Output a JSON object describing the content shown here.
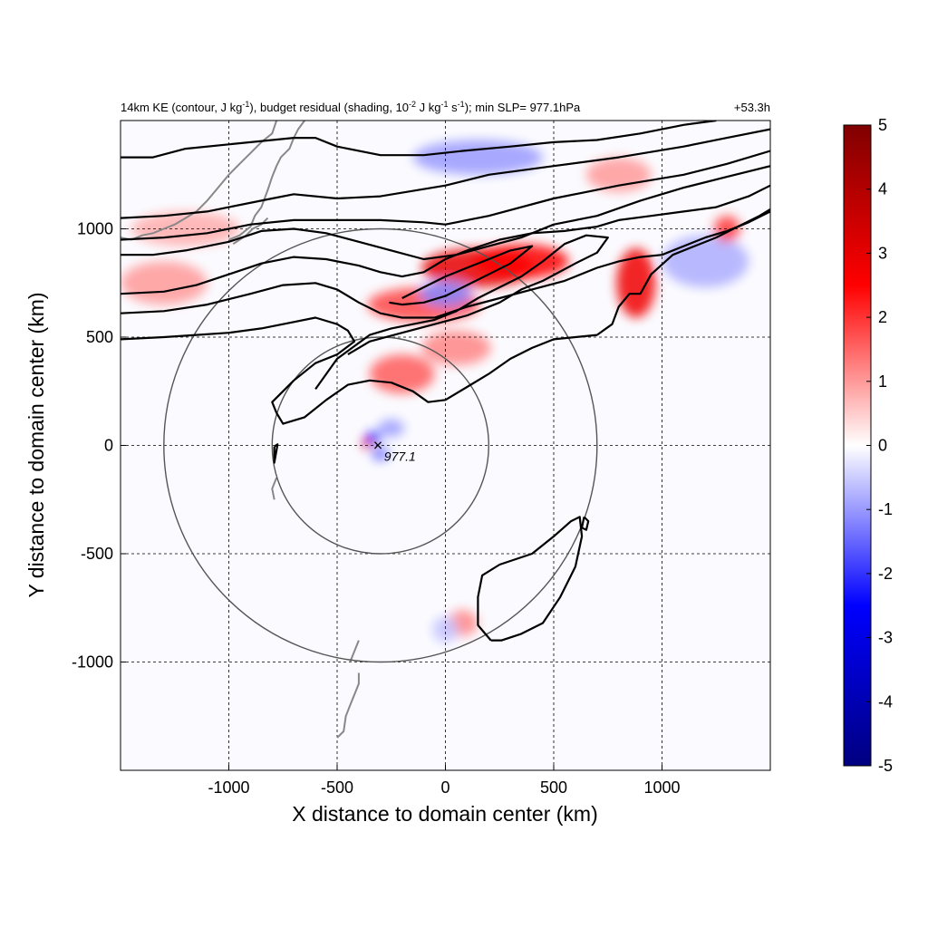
{
  "chart_data": {
    "type": "heatmap",
    "title": {
      "left_prefix": "14km KE (contour, J kg",
      "left_sup1": "-1",
      "left_mid1": "), budget residual (shading, 10",
      "left_sup2": "-2",
      "left_mid2": " J kg",
      "left_sup3": "-1",
      "left_mid3": " s",
      "left_sup4": "-1",
      "left_suffix": "); min SLP= 977.1hPa",
      "right": "+53.3h"
    },
    "xlabel": "X distance to domain center (km)",
    "ylabel": "Y distance to domain center (km)",
    "xlim": [
      -1500,
      1500
    ],
    "ylim": [
      -1500,
      1500
    ],
    "xticks": [
      -1000,
      -500,
      0,
      500,
      1000
    ],
    "yticks": [
      -1000,
      -500,
      0,
      500,
      1000
    ],
    "xtick_labels": [
      "-1000",
      "-500",
      "0",
      "500",
      "1000"
    ],
    "ytick_labels": [
      "-1000",
      "-500",
      "0",
      "500",
      "1000"
    ],
    "grid": true,
    "grid_style": "dashed",
    "colorbar": {
      "range": [
        -5,
        5
      ],
      "ticks": [
        -5,
        -4,
        -3,
        -2,
        -1,
        0,
        1,
        2,
        3,
        4,
        5
      ],
      "tick_labels": [
        "-5",
        "-4",
        "-3",
        "-2",
        "-1",
        "0",
        "1",
        "2",
        "3",
        "4",
        "5"
      ],
      "colors": [
        "#000080",
        "#0000ff",
        "#ffffff",
        "#ff0000",
        "#800000"
      ]
    },
    "storm_center": {
      "x": -300,
      "y": 0,
      "label": "977.1",
      "marker": "×"
    },
    "circles_km": [
      {
        "cx": -300,
        "cy": 0,
        "r": 500
      },
      {
        "cx": -300,
        "cy": 0,
        "r": 1000
      }
    ],
    "shading_features": [
      {
        "x": 150,
        "y": 820,
        "value": 3.0,
        "sx": 260,
        "sy": 90
      },
      {
        "x": 350,
        "y": 850,
        "value": 2.5,
        "sx": 220,
        "sy": 80
      },
      {
        "x": -100,
        "y": 650,
        "value": 1.8,
        "sx": 260,
        "sy": 80
      },
      {
        "x": 880,
        "y": 750,
        "value": 2.8,
        "sx": 90,
        "sy": 160
      },
      {
        "x": -200,
        "y": 330,
        "value": 1.6,
        "sx": 150,
        "sy": 90
      },
      {
        "x": 50,
        "y": 450,
        "value": 1.2,
        "sx": 160,
        "sy": 80
      },
      {
        "x": -360,
        "y": 10,
        "value": 3.5,
        "sx": 25,
        "sy": 25
      },
      {
        "x": -330,
        "y": 40,
        "value": -2.5,
        "sx": 35,
        "sy": 25
      },
      {
        "x": -300,
        "y": -40,
        "value": -1.5,
        "sx": 40,
        "sy": 30
      },
      {
        "x": -250,
        "y": 80,
        "value": -1.0,
        "sx": 60,
        "sy": 40
      },
      {
        "x": 0,
        "y": 700,
        "value": -1.2,
        "sx": 120,
        "sy": 60
      },
      {
        "x": 150,
        "y": 1330,
        "value": -1.0,
        "sx": 300,
        "sy": 80
      },
      {
        "x": 1200,
        "y": 850,
        "value": -0.8,
        "sx": 200,
        "sy": 120
      },
      {
        "x": -1300,
        "y": 750,
        "value": 1.0,
        "sx": 200,
        "sy": 100
      },
      {
        "x": -1200,
        "y": 1000,
        "value": 0.8,
        "sx": 250,
        "sy": 80
      },
      {
        "x": 80,
        "y": -820,
        "value": 1.2,
        "sx": 70,
        "sy": 60
      },
      {
        "x": 0,
        "y": -850,
        "value": -0.6,
        "sx": 60,
        "sy": 60
      },
      {
        "x": 1300,
        "y": 1000,
        "value": 2.0,
        "sx": 60,
        "sy": 60
      },
      {
        "x": 800,
        "y": 1250,
        "value": 1.0,
        "sx": 150,
        "sy": 80
      }
    ],
    "ke_contours_km": [
      [
        [
          -1500,
          1330
        ],
        [
          -1350,
          1330
        ],
        [
          -1200,
          1370
        ],
        [
          -1000,
          1390
        ],
        [
          -800,
          1410
        ],
        [
          -700,
          1420
        ]
      ],
      [
        [
          -700,
          1420
        ],
        [
          -600,
          1420
        ],
        [
          -500,
          1380
        ],
        [
          -300,
          1340
        ],
        [
          -100,
          1340
        ],
        [
          80,
          1360
        ],
        [
          300,
          1380
        ],
        [
          500,
          1400
        ],
        [
          700,
          1410
        ],
        [
          900,
          1440
        ],
        [
          1100,
          1480
        ],
        [
          1250,
          1500
        ]
      ],
      [
        [
          -1500,
          1050
        ],
        [
          -1300,
          1060
        ],
        [
          -1100,
          1080
        ],
        [
          -1000,
          1100
        ],
        [
          -800,
          1140
        ],
        [
          -700,
          1160
        ],
        [
          -500,
          1140
        ],
        [
          -300,
          1150
        ],
        [
          0,
          1200
        ],
        [
          200,
          1250
        ],
        [
          500,
          1290
        ],
        [
          800,
          1330
        ],
        [
          1100,
          1380
        ],
        [
          1300,
          1420
        ],
        [
          1500,
          1460
        ]
      ],
      [
        [
          -1500,
          950
        ],
        [
          -1300,
          960
        ],
        [
          -1100,
          980
        ],
        [
          -900,
          1020
        ],
        [
          -700,
          1040
        ],
        [
          -500,
          1040
        ],
        [
          -300,
          1040
        ],
        [
          -100,
          1030
        ],
        [
          0,
          1020
        ],
        [
          200,
          1060
        ],
        [
          500,
          1140
        ],
        [
          800,
          1200
        ],
        [
          1100,
          1250
        ],
        [
          1300,
          1300
        ],
        [
          1500,
          1360
        ]
      ],
      [
        [
          -1500,
          880
        ],
        [
          -1350,
          880
        ],
        [
          -1200,
          900
        ],
        [
          -1000,
          940
        ],
        [
          -850,
          990
        ],
        [
          -700,
          1000
        ],
        [
          -550,
          980
        ],
        [
          -400,
          940
        ],
        [
          -250,
          900
        ],
        [
          -100,
          860
        ],
        [
          50,
          880
        ],
        [
          200,
          920
        ],
        [
          350,
          960
        ],
        [
          500,
          1020
        ],
        [
          700,
          1060
        ],
        [
          900,
          1130
        ],
        [
          1100,
          1190
        ],
        [
          1300,
          1240
        ],
        [
          1500,
          1290
        ]
      ],
      [
        [
          -1500,
          700
        ],
        [
          -1300,
          710
        ],
        [
          -1150,
          740
        ],
        [
          -1000,
          790
        ],
        [
          -850,
          840
        ],
        [
          -700,
          870
        ],
        [
          -550,
          860
        ],
        [
          -400,
          830
        ],
        [
          -300,
          800
        ],
        [
          -200,
          780
        ],
        [
          -100,
          800
        ],
        [
          0,
          860
        ],
        [
          100,
          900
        ],
        [
          250,
          950
        ],
        [
          400,
          980
        ],
        [
          550,
          990
        ],
        [
          700,
          1010
        ],
        [
          800,
          1040
        ],
        [
          950,
          1060
        ],
        [
          1100,
          1080
        ],
        [
          1250,
          1100
        ],
        [
          1400,
          1150
        ],
        [
          1500,
          1200
        ]
      ],
      [
        [
          -1500,
          610
        ],
        [
          -1300,
          620
        ],
        [
          -1100,
          650
        ],
        [
          -900,
          700
        ],
        [
          -750,
          740
        ],
        [
          -600,
          750
        ],
        [
          -500,
          720
        ],
        [
          -400,
          660
        ],
        [
          -300,
          610
        ],
        [
          -200,
          590
        ],
        [
          -50,
          590
        ],
        [
          100,
          640
        ],
        [
          250,
          680
        ],
        [
          400,
          720
        ],
        [
          550,
          760
        ],
        [
          700,
          820
        ],
        [
          800,
          850
        ],
        [
          900,
          870
        ],
        [
          1000,
          880
        ],
        [
          1100,
          920
        ],
        [
          1200,
          960
        ],
        [
          1300,
          990
        ],
        [
          1400,
          1030
        ],
        [
          1500,
          1080
        ]
      ],
      [
        [
          -1500,
          490
        ],
        [
          -1300,
          500
        ],
        [
          -1150,
          510
        ],
        [
          -1000,
          520
        ],
        [
          -850,
          540
        ],
        [
          -700,
          570
        ],
        [
          -600,
          590
        ],
        [
          -500,
          560
        ],
        [
          -450,
          530
        ],
        [
          -420,
          480
        ],
        [
          -500,
          420
        ],
        [
          -600,
          380
        ],
        [
          -700,
          300
        ],
        [
          -800,
          200
        ],
        [
          -780,
          150
        ]
      ],
      [
        [
          -780,
          150
        ],
        [
          -750,
          100
        ],
        [
          -650,
          130
        ],
        [
          -550,
          210
        ],
        [
          -450,
          280
        ],
        [
          -350,
          300
        ],
        [
          -250,
          290
        ],
        [
          -150,
          250
        ],
        [
          -80,
          200
        ],
        [
          0,
          210
        ],
        [
          100,
          270
        ],
        [
          200,
          330
        ],
        [
          300,
          400
        ],
        [
          400,
          450
        ],
        [
          500,
          490
        ],
        [
          600,
          500
        ],
        [
          700,
          510
        ],
        [
          770,
          560
        ],
        [
          800,
          640
        ],
        [
          850,
          700
        ],
        [
          900,
          700
        ],
        [
          950,
          790
        ],
        [
          1050,
          880
        ],
        [
          1150,
          920
        ],
        [
          1250,
          960
        ],
        [
          1350,
          1010
        ],
        [
          1450,
          1060
        ],
        [
          1500,
          1090
        ]
      ],
      [
        [
          -600,
          260
        ],
        [
          -500,
          400
        ],
        [
          -350,
          510
        ],
        [
          -250,
          540
        ],
        [
          -150,
          560
        ],
        [
          -50,
          580
        ],
        [
          50,
          620
        ],
        [
          150,
          680
        ],
        [
          250,
          730
        ],
        [
          350,
          780
        ],
        [
          450,
          850
        ],
        [
          550,
          930
        ],
        [
          650,
          970
        ],
        [
          750,
          960
        ],
        [
          700,
          890
        ],
        [
          600,
          840
        ],
        [
          450,
          760
        ],
        [
          350,
          720
        ],
        [
          250,
          660
        ],
        [
          100,
          600
        ],
        [
          -50,
          560
        ],
        [
          -200,
          520
        ],
        [
          -350,
          480
        ],
        [
          -450,
          420
        ]
      ],
      [
        [
          -200,
          680
        ],
        [
          -100,
          730
        ],
        [
          0,
          780
        ],
        [
          100,
          820
        ],
        [
          200,
          860
        ],
        [
          300,
          900
        ],
        [
          400,
          920
        ],
        [
          350,
          880
        ],
        [
          300,
          840
        ],
        [
          200,
          790
        ],
        [
          100,
          740
        ],
        [
          0,
          690
        ],
        [
          -100,
          660
        ],
        [
          -200,
          650
        ],
        [
          -260,
          660
        ]
      ],
      [
        [
          210,
          -900
        ],
        [
          150,
          -830
        ],
        [
          150,
          -700
        ],
        [
          170,
          -600
        ],
        [
          250,
          -550
        ],
        [
          400,
          -500
        ],
        [
          500,
          -420
        ],
        [
          580,
          -350
        ],
        [
          620,
          -330
        ],
        [
          630,
          -420
        ],
        [
          600,
          -560
        ],
        [
          530,
          -700
        ],
        [
          450,
          -820
        ],
        [
          350,
          -870
        ],
        [
          260,
          -900
        ],
        [
          210,
          -900
        ]
      ],
      [
        [
          640,
          -330
        ],
        [
          660,
          -350
        ],
        [
          650,
          -390
        ],
        [
          630,
          -380
        ],
        [
          640,
          -330
        ]
      ],
      [
        [
          -790,
          -5
        ],
        [
          -775,
          5
        ],
        [
          -790,
          -80
        ],
        [
          -790,
          -5
        ]
      ]
    ],
    "coastlines_km": [
      [
        [
          -1500,
          960
        ],
        [
          -1450,
          950
        ],
        [
          -1400,
          970
        ],
        [
          -1350,
          980
        ],
        [
          -1300,
          1000
        ],
        [
          -1250,
          1020
        ],
        [
          -1200,
          1050
        ],
        [
          -1150,
          1080
        ],
        [
          -1100,
          1130
        ],
        [
          -1050,
          1190
        ],
        [
          -1000,
          1250
        ],
        [
          -950,
          1300
        ],
        [
          -900,
          1350
        ],
        [
          -850,
          1400
        ],
        [
          -800,
          1440
        ],
        [
          -780,
          1500
        ]
      ],
      [
        [
          -1000,
          950
        ],
        [
          -950,
          970
        ],
        [
          -900,
          1010
        ],
        [
          -880,
          1060
        ],
        [
          -850,
          1100
        ],
        [
          -820,
          1180
        ],
        [
          -800,
          1240
        ],
        [
          -780,
          1290
        ],
        [
          -760,
          1330
        ],
        [
          -720,
          1370
        ],
        [
          -700,
          1420
        ],
        [
          -680,
          1460
        ],
        [
          -650,
          1500
        ]
      ],
      [
        [
          -820,
          1050
        ],
        [
          -850,
          1020
        ],
        [
          -890,
          1000
        ],
        [
          -920,
          970
        ],
        [
          -950,
          950
        ],
        [
          -980,
          930
        ]
      ],
      [
        [
          -780,
          -150
        ],
        [
          -800,
          -200
        ],
        [
          -790,
          -250
        ]
      ],
      [
        [
          -500,
          -1350
        ],
        [
          -470,
          -1320
        ],
        [
          -460,
          -1250
        ],
        [
          -440,
          -1200
        ],
        [
          -420,
          -1150
        ],
        [
          -400,
          -1100
        ],
        [
          -400,
          -1050
        ]
      ],
      [
        [
          -400,
          -900
        ],
        [
          -420,
          -950
        ],
        [
          -440,
          -1000
        ]
      ]
    ]
  }
}
